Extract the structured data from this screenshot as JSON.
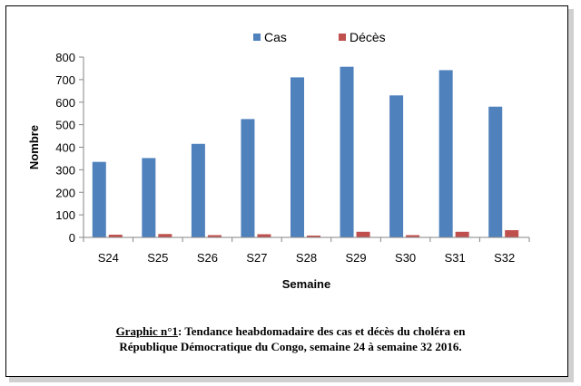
{
  "chart_data": {
    "type": "bar",
    "categories": [
      "S24",
      "S25",
      "S26",
      "S27",
      "S28",
      "S29",
      "S30",
      "S31",
      "S32"
    ],
    "series": [
      {
        "name": "Cas",
        "color": "#4f81bd",
        "values": [
          335,
          352,
          415,
          525,
          710,
          757,
          630,
          742,
          580
        ]
      },
      {
        "name": "Décès",
        "color": "#c0504d",
        "values": [
          12,
          15,
          10,
          14,
          8,
          25,
          10,
          25,
          32
        ]
      }
    ],
    "xlabel": "Semaine",
    "ylabel": "Nombre",
    "ylim": [
      0,
      800
    ],
    "yticks": [
      0,
      100,
      200,
      300,
      400,
      500,
      600,
      700,
      800
    ],
    "legend_position": "top-right",
    "grid": false
  },
  "caption": {
    "prefix": "Graphic n°1",
    "line1": ": Tendance heabdomadaire des cas et décès du choléra en",
    "line2": "République Démocratique du Congo, semaine 24 à semaine 32 2016."
  }
}
